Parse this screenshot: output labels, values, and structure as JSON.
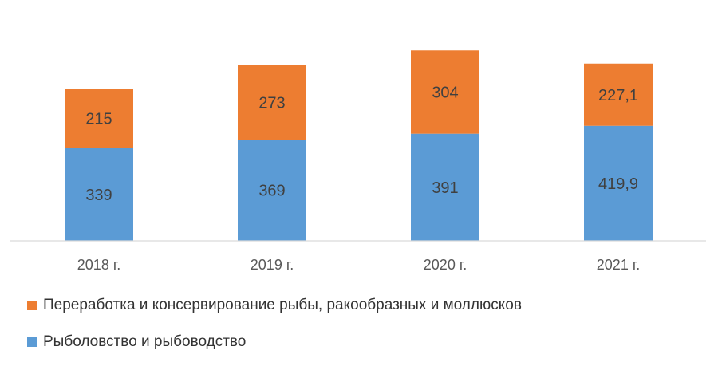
{
  "chart_data": {
    "type": "bar",
    "stacked": true,
    "categories": [
      "2018 г.",
      "2019 г.",
      "2020 г.",
      "2021 г."
    ],
    "series": [
      {
        "name": "Рыболовство и рыбоводство",
        "values": [
          339,
          369,
          391,
          419.9
        ],
        "labels": [
          "339",
          "369",
          "391",
          "419,9"
        ],
        "color": "#5B9BD5"
      },
      {
        "name": "Переработка и консервирование рыбы, ракообразных и моллюсков",
        "values": [
          215,
          273,
          304,
          227.1
        ],
        "labels": [
          "215",
          "273",
          "304",
          "227,1"
        ],
        "color": "#ED7D31"
      }
    ],
    "ylim": [
      0,
      700
    ],
    "grid": false,
    "legend_position": "bottom"
  }
}
